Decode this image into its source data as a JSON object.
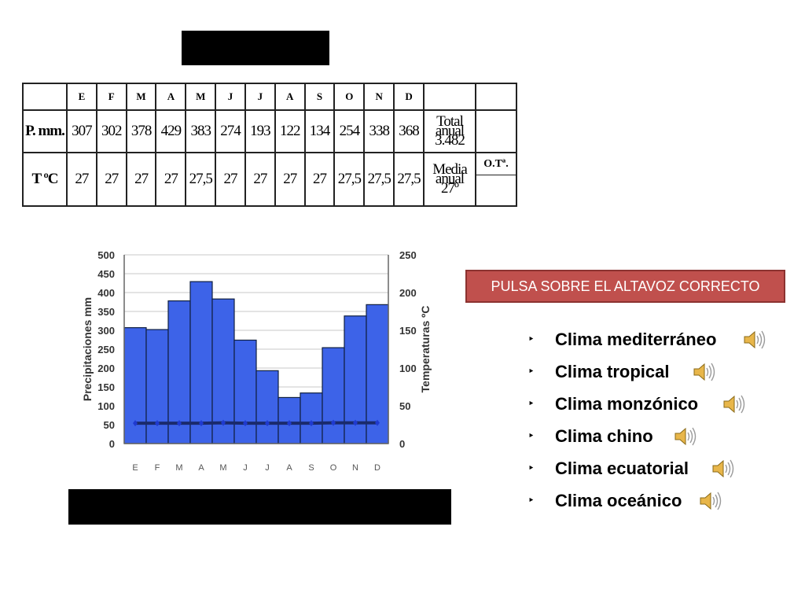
{
  "table": {
    "months": [
      "E",
      "F",
      "M",
      "A",
      "M",
      "J",
      "J",
      "A",
      "S",
      "O",
      "N",
      "D"
    ],
    "precip_label": "P. mm.",
    "precip": [
      "307",
      "302",
      "378",
      "429",
      "383",
      "274",
      "193",
      "122",
      "134",
      "254",
      "338",
      "368"
    ],
    "precip_total_line1": "Total anual",
    "precip_total_line2": "3.482",
    "temp_label": "T ºC",
    "temp": [
      "27",
      "27",
      "27",
      "27",
      "27,5",
      "27",
      "27",
      "27",
      "27",
      "27,5",
      "27,5",
      "27,5"
    ],
    "temp_mean_line1": "Media anual",
    "temp_mean_line2": "27º",
    "ot_label": "O.Tª."
  },
  "chart_data": {
    "type": "bar",
    "categories": [
      "E",
      "F",
      "M",
      "A",
      "M",
      "J",
      "J",
      "A",
      "S",
      "O",
      "N",
      "D"
    ],
    "series": [
      {
        "name": "Precipitaciones mm",
        "type": "bar",
        "values": [
          307,
          302,
          378,
          429,
          383,
          274,
          193,
          122,
          134,
          254,
          338,
          368
        ]
      },
      {
        "name": "Temperaturas ºC",
        "type": "line",
        "values": [
          27,
          27,
          27,
          27,
          27.5,
          27,
          27,
          27,
          27,
          27.5,
          27.5,
          27.5
        ]
      }
    ],
    "ylabel": "Precipitaciones mm",
    "ylabel_right": "Temperaturas ºC",
    "ylim": [
      0,
      500
    ],
    "ylim_right": [
      0,
      250
    ],
    "yticks": [
      "0",
      "50",
      "100",
      "150",
      "200",
      "250",
      "300",
      "350",
      "400",
      "450",
      "500"
    ],
    "yticks_right": [
      "0",
      "50",
      "100",
      "150",
      "200",
      "250"
    ],
    "grid": true,
    "colors": {
      "bar": "#3d63e8",
      "bar_edge": "#102040",
      "line": "#1a2a6c",
      "marker": "#1f3ad0"
    }
  },
  "prompt": {
    "label": "PULSA SOBRE EL ALTAVOZ CORRECTO"
  },
  "options": [
    {
      "label": "Clima mediterráneo",
      "icon": "speaker-icon"
    },
    {
      "label": "Clima tropical",
      "icon": "speaker-icon"
    },
    {
      "label": "Clima monzónico",
      "icon": "speaker-icon"
    },
    {
      "label": "Clima chino",
      "icon": "speaker-icon"
    },
    {
      "label": "Clima ecuatorial",
      "icon": "speaker-icon"
    },
    {
      "label": "Clima oceánico",
      "icon": "speaker-icon"
    }
  ]
}
